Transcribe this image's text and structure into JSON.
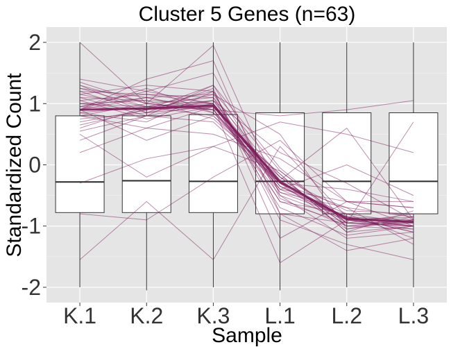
{
  "chart_data": {
    "type": "boxplot",
    "title": "Cluster 5 Genes (n=63)",
    "xlabel": "Sample",
    "ylabel": "Standardized Count",
    "categories": [
      "K.1",
      "K.2",
      "K.3",
      "L.1",
      "L.2",
      "L.3"
    ],
    "ylim": [
      -2.25,
      2.25
    ],
    "yticks": [
      -2,
      -1,
      0,
      1,
      2
    ],
    "grid": true,
    "background": "#e5e5e5",
    "line_color": "#7b1a5a",
    "boxes": [
      {
        "category": "K.1",
        "min": -2.0,
        "q1": -0.78,
        "median": -0.28,
        "q3": 0.8,
        "max": 2.0
      },
      {
        "category": "K.2",
        "min": -2.05,
        "q1": -0.78,
        "median": -0.26,
        "q3": 0.8,
        "max": 2.0
      },
      {
        "category": "K.3",
        "min": -2.0,
        "q1": -0.78,
        "median": -0.27,
        "q3": 0.82,
        "max": 2.0
      },
      {
        "category": "L.1",
        "min": -2.05,
        "q1": -0.8,
        "median": -0.27,
        "q3": 0.85,
        "max": 2.0
      },
      {
        "category": "L.2",
        "min": -2.0,
        "q1": -0.8,
        "median": -0.27,
        "q3": 0.85,
        "max": 2.0
      },
      {
        "category": "L.3",
        "min": -2.0,
        "q1": -0.8,
        "median": -0.27,
        "q3": 0.85,
        "max": 2.0
      }
    ],
    "mean_profile": [
      0.9,
      0.92,
      0.97,
      -0.28,
      -0.88,
      -0.93
    ],
    "gene_profiles": [
      [
        0.95,
        0.9,
        1.05,
        -0.3,
        -0.9,
        -0.95
      ],
      [
        1.2,
        0.85,
        0.95,
        -0.25,
        -0.95,
        -1.0
      ],
      [
        0.8,
        1.0,
        0.9,
        -0.4,
        -0.85,
        -0.9
      ],
      [
        1.05,
        1.15,
        1.1,
        -0.2,
        -1.0,
        -1.05
      ],
      [
        0.6,
        0.95,
        1.0,
        -0.35,
        -0.8,
        -0.95
      ],
      [
        1.3,
        1.0,
        0.9,
        -0.5,
        -0.9,
        -0.85
      ],
      [
        0.85,
        0.7,
        1.2,
        -0.1,
        -0.95,
        -1.0
      ],
      [
        0.9,
        1.25,
        0.85,
        -0.3,
        -1.05,
        -0.9
      ],
      [
        1.1,
        0.8,
        1.3,
        -0.45,
        -0.85,
        -1.1
      ],
      [
        0.7,
        0.9,
        0.95,
        -0.2,
        -0.75,
        -0.8
      ],
      [
        1.0,
        1.05,
        1.0,
        -0.6,
        -0.95,
        -0.95
      ],
      [
        1.25,
        0.95,
        0.8,
        -0.15,
        -1.1,
        -1.0
      ],
      [
        0.95,
        1.1,
        1.15,
        -0.35,
        -0.9,
        -1.05
      ],
      [
        0.4,
        0.8,
        0.7,
        -0.3,
        -0.7,
        -0.85
      ],
      [
        1.4,
        1.2,
        1.5,
        -0.55,
        -1.0,
        -0.9
      ],
      [
        0.2,
        0.6,
        0.5,
        0.1,
        -0.6,
        -0.7
      ],
      [
        -0.3,
        0.1,
        0.3,
        -0.1,
        -0.9,
        -1.0
      ],
      [
        2.0,
        1.0,
        1.95,
        -0.5,
        -1.2,
        -1.1
      ],
      [
        -0.8,
        -0.9,
        -0.2,
        0.4,
        -0.6,
        -0.6
      ],
      [
        -1.55,
        -0.6,
        -1.55,
        0.3,
        -0.85,
        -1.0
      ],
      [
        0.5,
        -0.2,
        0.3,
        0.7,
        0.5,
        0.2
      ],
      [
        0.9,
        1.4,
        1.7,
        -0.8,
        -1.4,
        -1.2
      ],
      [
        1.0,
        0.95,
        0.9,
        0.8,
        0.9,
        1.05
      ],
      [
        1.15,
        1.3,
        1.2,
        -0.9,
        -1.3,
        -1.55
      ],
      [
        0.75,
        0.85,
        1.25,
        -1.2,
        -0.6,
        -0.7
      ],
      [
        1.05,
        0.75,
        0.95,
        -0.4,
        0.0,
        -0.5
      ],
      [
        0.85,
        0.95,
        1.05,
        0.2,
        -0.3,
        -0.9
      ],
      [
        1.2,
        1.15,
        1.0,
        -0.7,
        -1.15,
        -1.0
      ],
      [
        0.9,
        0.4,
        0.8,
        -0.3,
        -0.4,
        -0.6
      ],
      [
        1.35,
        1.0,
        1.1,
        -0.6,
        -0.8,
        -1.2
      ],
      [
        0.65,
        0.9,
        1.3,
        -0.05,
        -0.95,
        -0.8
      ],
      [
        1.1,
        1.05,
        0.75,
        -0.2,
        -1.0,
        -0.95
      ],
      [
        0.95,
        1.2,
        1.0,
        -0.45,
        -0.7,
        -1.3
      ],
      [
        0.8,
        0.6,
        0.95,
        -1.6,
        -0.9,
        -1.0
      ],
      [
        1.0,
        0.9,
        1.15,
        0.5,
        -1.05,
        -0.85
      ],
      [
        1.25,
        1.1,
        0.9,
        -0.35,
        -0.85,
        -1.1
      ],
      [
        0.55,
        0.8,
        1.0,
        -0.25,
        0.6,
        -0.9
      ],
      [
        1.15,
        0.95,
        1.2,
        -0.8,
        -0.95,
        0.7
      ],
      [
        0.9,
        1.1,
        0.85,
        -0.15,
        -1.1,
        -0.75
      ],
      [
        1.3,
        0.85,
        1.05,
        -0.4,
        -0.6,
        -1.0
      ]
    ]
  }
}
